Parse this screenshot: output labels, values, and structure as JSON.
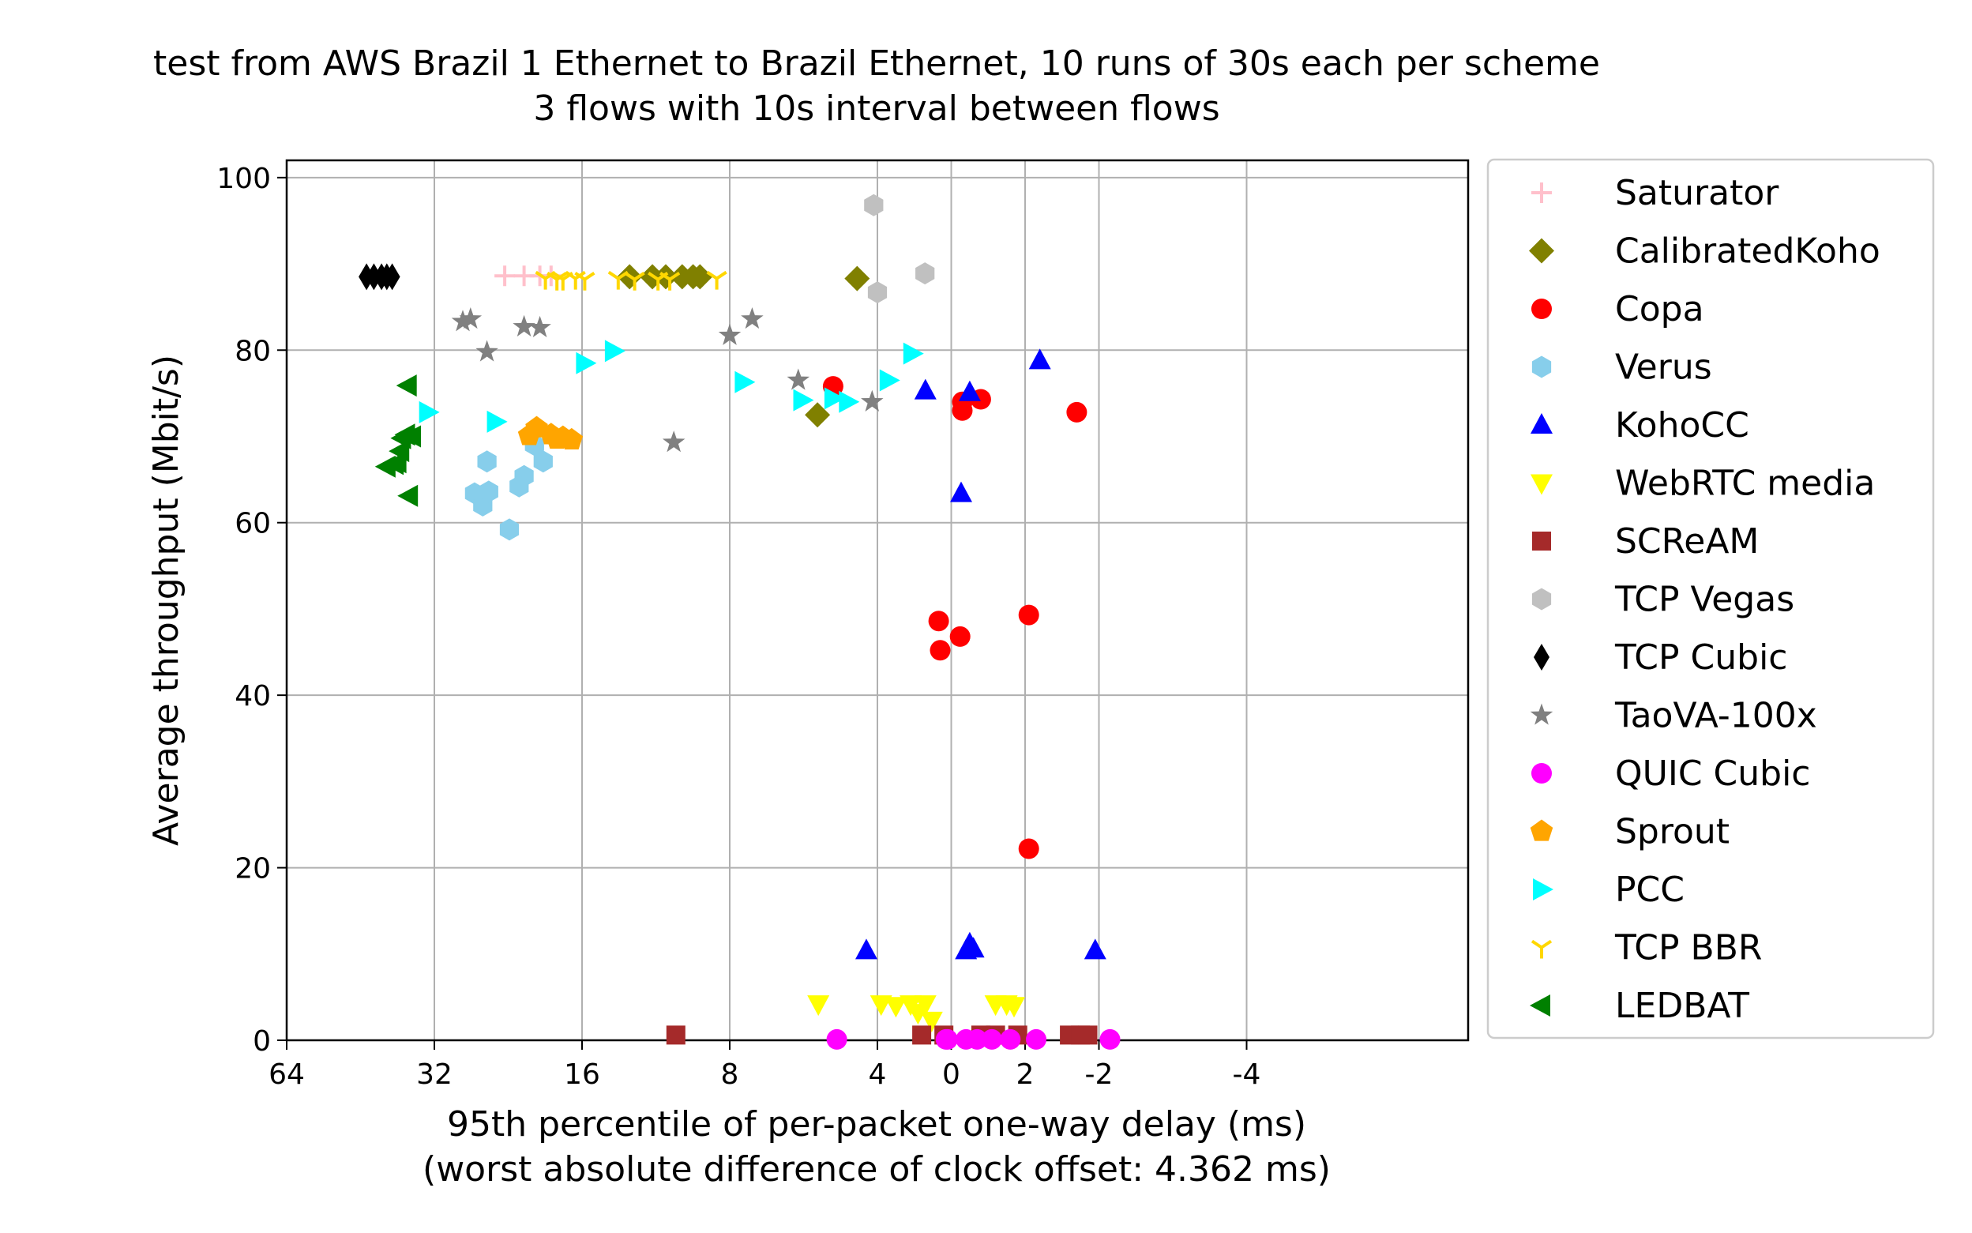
{
  "chart_data": {
    "type": "scatter",
    "title": "test from AWS Brazil 1 Ethernet to Brazil Ethernet, 10 runs of 30s each per scheme",
    "subtitle": "3 flows with 10s interval between flows",
    "xlabel": "95th percentile of per-packet one-way delay (ms)",
    "xlabel2": "(worst absolute difference of clock offset: 4.362 ms)",
    "ylabel": "Average throughput (Mbit/s)",
    "x_scale": "symlog, inverted (delay decreases to the right)",
    "x_ticks": [
      64,
      32,
      16,
      8,
      4,
      2,
      0,
      -2,
      -4
    ],
    "x_tick_labels": [
      "64",
      "32",
      "16",
      "8",
      "4",
      "2",
      "0",
      "-2",
      "-4"
    ],
    "y_ticks": [
      0,
      20,
      40,
      60,
      80,
      100
    ],
    "y_tick_labels": [
      "0",
      "20",
      "40",
      "60",
      "80",
      "100"
    ],
    "ylim": [
      0,
      102
    ],
    "grid": true,
    "legend_position": "right, outside plot",
    "series": [
      {
        "name": "Saturator",
        "marker": "plus",
        "color": "#ffc0cb",
        "points": [
          [
            23.0,
            88.6
          ],
          [
            21.0,
            88.6
          ],
          [
            19.5,
            88.6
          ],
          [
            18.5,
            88.6
          ]
        ]
      },
      {
        "name": "CalibratedKoho",
        "marker": "diamond",
        "color": "#808000",
        "points": [
          [
            12.8,
            88.5
          ],
          [
            11.5,
            88.5
          ],
          [
            10.8,
            88.5
          ],
          [
            10.0,
            88.5
          ],
          [
            9.5,
            88.5
          ],
          [
            9.2,
            88.5
          ],
          [
            4.4,
            88.3
          ],
          [
            5.3,
            72.5
          ]
        ]
      },
      {
        "name": "Copa",
        "marker": "circle",
        "color": "#ff0000",
        "points": [
          [
            1.6,
            75.8
          ],
          [
            -0.15,
            74.0
          ],
          [
            -0.4,
            74.3
          ],
          [
            -0.15,
            73.0
          ],
          [
            -1.7,
            72.8
          ],
          [
            3.0,
            48.6
          ],
          [
            0.15,
            45.2
          ],
          [
            -0.12,
            46.8
          ],
          [
            -1.05,
            49.3
          ],
          [
            -1.05,
            22.2
          ]
        ]
      },
      {
        "name": "Verus",
        "marker": "hexagon",
        "color": "#87ceeb",
        "points": [
          [
            26.5,
            63.4
          ],
          [
            25.5,
            62.0
          ],
          [
            24.8,
            63.6
          ],
          [
            22.5,
            59.2
          ],
          [
            21.0,
            65.4
          ],
          [
            21.5,
            64.2
          ],
          [
            20.0,
            69.0
          ],
          [
            19.2,
            67.1
          ],
          [
            25.0,
            67.1
          ]
        ]
      },
      {
        "name": "KohoCC",
        "marker": "triangle-up",
        "color": "#0000ff",
        "points": [
          [
            2.7,
            63.4
          ],
          [
            0.35,
            75.3
          ],
          [
            -0.25,
            75.1
          ],
          [
            -1.2,
            78.8
          ],
          [
            1.15,
            10.4
          ],
          [
            -0.2,
            10.4
          ],
          [
            -0.25,
            11.2
          ],
          [
            -0.3,
            10.6
          ],
          [
            -1.95,
            10.4
          ]
        ]
      },
      {
        "name": "WebRTC media",
        "marker": "triangle-down",
        "color": "#ffff00",
        "points": [
          [
            3.1,
            2.3
          ],
          [
            1.8,
            4.2
          ],
          [
            0.95,
            4.2
          ],
          [
            0.75,
            4.0
          ],
          [
            0.55,
            4.2
          ],
          [
            0.45,
            3.2
          ],
          [
            0.35,
            4.2
          ],
          [
            -0.75,
            4.2
          ],
          [
            -0.85,
            4.0
          ],
          [
            -0.6,
            4.2
          ]
        ]
      },
      {
        "name": "SCReAM",
        "marker": "square",
        "color": "#a52a2a",
        "points": [
          [
            10.3,
            0.6
          ],
          [
            0.4,
            0.6
          ],
          [
            0.1,
            0.6
          ],
          [
            -0.4,
            0.6
          ],
          [
            -0.6,
            0.6
          ],
          [
            -0.9,
            0.6
          ],
          [
            -1.6,
            0.6
          ],
          [
            -1.75,
            0.6
          ],
          [
            -1.85,
            0.6
          ]
        ]
      },
      {
        "name": "TCP Vegas",
        "marker": "hexagon",
        "color": "#c0c0c0",
        "points": [
          [
            3.2,
            88.9
          ],
          [
            1.05,
            96.8
          ],
          [
            1.0,
            86.7
          ]
        ]
      },
      {
        "name": "TCP Cubic",
        "marker": "thin-diamond",
        "color": "#000000",
        "points": [
          [
            44.0,
            88.5
          ],
          [
            42.5,
            88.5
          ],
          [
            41.0,
            88.5
          ],
          [
            40.0,
            88.5
          ],
          [
            39.0,
            88.5
          ]
        ]
      },
      {
        "name": "TaoVA-100x",
        "marker": "star",
        "color": "#808080",
        "points": [
          [
            28.0,
            83.3
          ],
          [
            27.0,
            83.6
          ],
          [
            25.0,
            79.8
          ],
          [
            21.0,
            82.7
          ],
          [
            19.5,
            82.6
          ],
          [
            8.0,
            81.7
          ],
          [
            7.2,
            83.6
          ],
          [
            5.8,
            76.5
          ],
          [
            4.1,
            74.0
          ],
          [
            10.4,
            69.3
          ]
        ]
      },
      {
        "name": "QUIC Cubic",
        "marker": "circle",
        "color": "#ff00ff",
        "points": [
          [
            2.9,
            0.1
          ],
          [
            1.55,
            0.1
          ],
          [
            0.05,
            0.1
          ],
          [
            -0.2,
            0.1
          ],
          [
            -0.35,
            0.1
          ],
          [
            -0.55,
            0.1
          ],
          [
            -0.8,
            0.1
          ],
          [
            -1.15,
            0.1
          ],
          [
            -2.15,
            0.1
          ]
        ]
      },
      {
        "name": "Sprout",
        "marker": "pentagon",
        "color": "#ffa500",
        "points": [
          [
            20.5,
            70.1
          ],
          [
            19.8,
            71.0
          ],
          [
            18.5,
            70.2
          ],
          [
            18.0,
            69.7
          ],
          [
            17.5,
            69.9
          ],
          [
            16.8,
            69.6
          ]
        ]
      },
      {
        "name": "PCC",
        "marker": "triangle-right",
        "color": "#00ffff",
        "points": [
          [
            33.0,
            72.8
          ],
          [
            24.0,
            71.7
          ],
          [
            15.8,
            78.5
          ],
          [
            13.8,
            79.9
          ],
          [
            7.5,
            76.3
          ],
          [
            5.7,
            74.2
          ],
          [
            4.6,
            74.0
          ],
          [
            3.8,
            76.5
          ],
          [
            3.4,
            79.6
          ],
          [
            1.6,
            74.4
          ]
        ]
      },
      {
        "name": "TCP BBR",
        "marker": "tri-down",
        "color": "#ffd700",
        "points": [
          [
            19.0,
            88.3
          ],
          [
            18.0,
            88.2
          ],
          [
            17.5,
            88.2
          ],
          [
            16.5,
            88.3
          ],
          [
            15.8,
            88.2
          ],
          [
            13.5,
            88.3
          ],
          [
            12.5,
            88.2
          ],
          [
            11.2,
            88.2
          ],
          [
            10.6,
            88.2
          ],
          [
            8.5,
            88.3
          ]
        ]
      },
      {
        "name": "LEDBAT",
        "marker": "triangle-left",
        "color": "#008000",
        "points": [
          [
            40.0,
            66.5
          ],
          [
            38.5,
            66.8
          ],
          [
            38.0,
            67.0
          ],
          [
            37.5,
            68.3
          ],
          [
            37.2,
            69.8
          ],
          [
            36.5,
            70.2
          ],
          [
            35.5,
            70.0
          ],
          [
            36.0,
            63.1
          ],
          [
            36.2,
            75.9
          ]
        ]
      }
    ]
  }
}
